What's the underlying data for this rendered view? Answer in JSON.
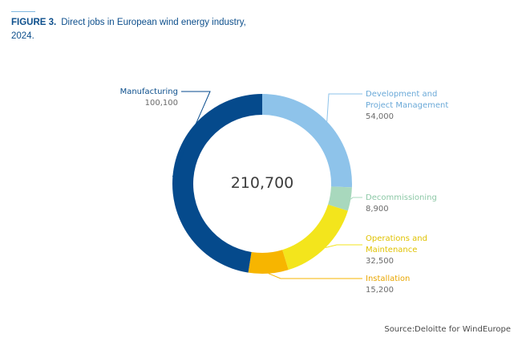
{
  "figure": {
    "number": "FIGURE 3.",
    "title": "Direct jobs in European wind energy industry, 2024."
  },
  "source": "Source:Deloitte for WindEurope",
  "chart_data": {
    "type": "pie",
    "variant": "donut",
    "total_label": "210,700",
    "segments": [
      {
        "name": "Development and Project Management",
        "display_name": [
          "Development and",
          "Project Management"
        ],
        "value": 54000,
        "value_label": "54,000",
        "color": "#8ec3ea",
        "label_color": "#6aa9d8"
      },
      {
        "name": "Decommissioning",
        "display_name": [
          "Decommissioning"
        ],
        "value": 8900,
        "value_label": "8,900",
        "color": "#a8d8bd",
        "label_color": "#8cc8a6"
      },
      {
        "name": "Operations and Maintenance",
        "display_name": [
          "Operations and",
          "Maintenance"
        ],
        "value": 32500,
        "value_label": "32,500",
        "color": "#f3e51c",
        "label_color": "#e0c200"
      },
      {
        "name": "Installation",
        "display_name": [
          "Installation"
        ],
        "value": 15200,
        "value_label": "15,200",
        "color": "#f7b500",
        "label_color": "#e9a600"
      },
      {
        "name": "Manufacturing",
        "display_name": [
          "Manufacturing"
        ],
        "value": 100100,
        "value_label": "100,100",
        "color": "#054a8c",
        "label_color": "#0d4f8c"
      }
    ]
  }
}
